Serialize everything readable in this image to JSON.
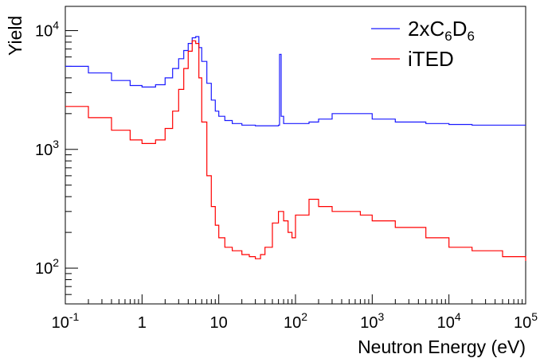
{
  "chart_data": {
    "type": "line",
    "title": "",
    "xlabel": "Neutron Energy (eV)",
    "ylabel": "Yield",
    "x_scale": "log",
    "y_scale": "log",
    "xlim": [
      0.1,
      100000
    ],
    "ylim": [
      50,
      16000
    ],
    "grid": false,
    "legend_position": "top-right",
    "x_ticks": [
      {
        "value": 0.1,
        "base": "10",
        "exp": "-1"
      },
      {
        "value": 1,
        "base": "1",
        "exp": ""
      },
      {
        "value": 10,
        "base": "10",
        "exp": ""
      },
      {
        "value": 100,
        "base": "10",
        "exp": "2"
      },
      {
        "value": 1000,
        "base": "10",
        "exp": "3"
      },
      {
        "value": 10000,
        "base": "10",
        "exp": "4"
      },
      {
        "value": 100000,
        "base": "10",
        "exp": "5"
      }
    ],
    "y_ticks": [
      {
        "value": 100,
        "base": "10",
        "exp": "2"
      },
      {
        "value": 1000,
        "base": "10",
        "exp": "3"
      },
      {
        "value": 10000,
        "base": "10",
        "exp": "4"
      }
    ],
    "series": [
      {
        "name": "2xC6D6",
        "label_parts": [
          "2xC",
          "6",
          "D",
          "6"
        ],
        "color": "#1a1aff",
        "x": [
          0.1,
          0.2,
          0.4,
          0.7,
          1.0,
          1.5,
          2.0,
          2.5,
          3.0,
          3.5,
          4.0,
          4.5,
          5.0,
          5.5,
          6.0,
          7.0,
          8.0,
          9.0,
          10,
          12,
          15,
          20,
          30,
          50,
          60,
          62,
          65,
          70,
          100,
          150,
          200,
          300,
          500,
          1000,
          2000,
          5000,
          10000,
          20000,
          50000,
          100000
        ],
        "y": [
          5000,
          4400,
          3800,
          3450,
          3350,
          3500,
          4000,
          4800,
          5800,
          6800,
          7800,
          8700,
          8900,
          7200,
          5500,
          3600,
          2600,
          2100,
          1900,
          1750,
          1650,
          1600,
          1580,
          1580,
          1600,
          6300,
          1900,
          1650,
          1650,
          1700,
          1800,
          2000,
          2000,
          1800,
          1700,
          1650,
          1620,
          1600,
          1600,
          1600
        ]
      },
      {
        "name": "iTED",
        "label_parts": [
          "iTED"
        ],
        "color": "#ff0000",
        "x": [
          0.1,
          0.2,
          0.4,
          0.7,
          1.0,
          1.5,
          2.0,
          2.5,
          3.0,
          3.5,
          4.0,
          4.5,
          5.0,
          5.5,
          6.0,
          7.0,
          8.0,
          9.0,
          10,
          12,
          15,
          20,
          25,
          30,
          35,
          40,
          50,
          60,
          70,
          80,
          90,
          100,
          150,
          200,
          300,
          500,
          700,
          1000,
          2000,
          5000,
          10000,
          20000,
          50000,
          100000
        ],
        "y": [
          2300,
          1850,
          1450,
          1200,
          1120,
          1200,
          1500,
          2100,
          3200,
          4800,
          6700,
          8200,
          7800,
          4000,
          1700,
          600,
          330,
          230,
          180,
          150,
          140,
          130,
          125,
          120,
          130,
          150,
          240,
          300,
          250,
          200,
          180,
          280,
          380,
          330,
          300,
          300,
          280,
          250,
          220,
          180,
          150,
          140,
          125,
          115
        ]
      }
    ]
  }
}
